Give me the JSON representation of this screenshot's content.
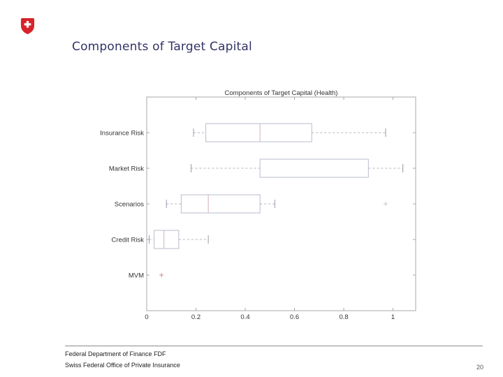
{
  "slide": {
    "title": "Components of Target Capital",
    "footer": {
      "line1": "Federal Department of Finance FDF",
      "line2": "Swiss Federal Office of Private Insurance"
    },
    "page_number": "20"
  },
  "theme": {
    "title-color": "#333366",
    "text-color": "#222222",
    "rule-color": "#8c8c8c",
    "page-num-color": "#555555",
    "logo-red": "#d8232a",
    "bg": "#ffffff"
  },
  "logo": {
    "name": "swiss-federal-shield",
    "cross": "white-cross"
  },
  "chart_data": {
    "type": "boxplot",
    "orientation": "horizontal",
    "title": "Components of Target Capital (Health)",
    "categories": [
      "Insurance Risk",
      "Market Risk",
      "Scenarios",
      "Credit Risk",
      "MVM"
    ],
    "x_ticks": [
      "0",
      "0.2",
      "0.4",
      "0.6",
      "0.8",
      "1"
    ],
    "xlim": [
      0,
      1.092
    ],
    "grid": false,
    "series": [
      {
        "category": "Insurance Risk",
        "whisker_low": 0.19,
        "q1": 0.24,
        "median": 0.46,
        "q3": 0.67,
        "whisker_high": 0.97,
        "outliers": []
      },
      {
        "category": "Market Risk",
        "whisker_low": 0.18,
        "q1": 0.46,
        "median": 0.46,
        "q3": 0.9,
        "whisker_high": 1.04,
        "outliers": []
      },
      {
        "category": "Scenarios",
        "whisker_low": 0.08,
        "q1": 0.14,
        "median": 0.25,
        "q3": 0.46,
        "whisker_high": 0.52,
        "outliers": [
          0.97
        ]
      },
      {
        "category": "Credit Risk",
        "whisker_low": 0.01,
        "q1": 0.03,
        "median": 0.07,
        "q3": 0.13,
        "whisker_high": 0.25,
        "outliers": []
      },
      {
        "category": "MVM",
        "whisker_low": null,
        "q1": null,
        "median": null,
        "q3": null,
        "whisker_high": null,
        "outliers": [
          0.06
        ],
        "point_only": true
      }
    ],
    "colors": {
      "axis": "#a8a8a8",
      "box": "#b8bccd",
      "median": "#d0b2b6",
      "whisker": "#b6b6c0",
      "cap": "#9a9aa8",
      "outlier": "#d2c4c4",
      "point": "#c98f8f",
      "text": "#333333"
    }
  }
}
